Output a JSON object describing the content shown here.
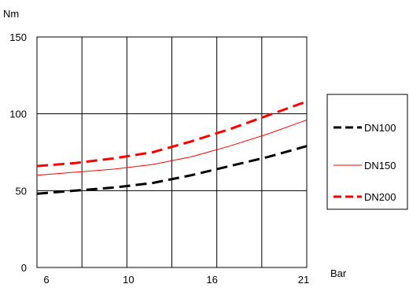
{
  "chart_data": {
    "type": "line",
    "xlabel": "Bar",
    "ylabel": "Nm",
    "x_tick_labels": [
      "6",
      "10",
      "16",
      "21"
    ],
    "y_ticks": [
      0,
      50,
      100,
      150
    ],
    "ylim": [
      0,
      150
    ],
    "grid": true,
    "legend_position": "right",
    "series": [
      {
        "name": "DN100",
        "color": "#000000",
        "style": "dashed-thick",
        "values": [
          48,
          50,
          52,
          55,
          60,
          66,
          72,
          79
        ]
      },
      {
        "name": "DN150",
        "color": "#ff0000",
        "style": "solid-thin",
        "values": [
          60,
          62,
          64,
          67,
          72,
          79,
          87,
          96
        ]
      },
      {
        "name": "DN200",
        "color": "#ff0000",
        "style": "dashed-thick",
        "values": [
          66,
          68,
          71,
          75,
          82,
          90,
          99,
          108
        ]
      }
    ]
  }
}
